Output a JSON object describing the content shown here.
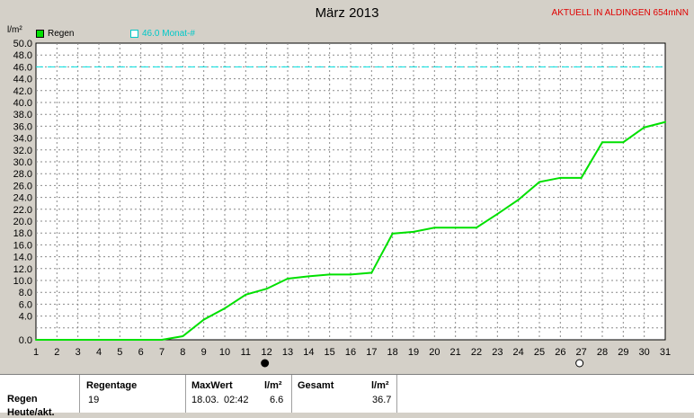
{
  "chart_data": {
    "type": "line",
    "title": "März 2013",
    "ylabel": "l/m²",
    "ylim": [
      0,
      50
    ],
    "yticks": [
      "0.0",
      "4.0",
      "6.0",
      "8.0",
      "10.0",
      "12.0",
      "14.0",
      "16.0",
      "18.0",
      "20.0",
      "22.0",
      "24.0",
      "26.0",
      "28.0",
      "30.0",
      "32.0",
      "34.0",
      "36.0",
      "38.0",
      "40.0",
      "42.0",
      "44.0",
      "46.0",
      "48.0",
      "50.0"
    ],
    "ytick_values": [
      0,
      4,
      6,
      8,
      10,
      12,
      14,
      16,
      18,
      20,
      22,
      24,
      26,
      28,
      30,
      32,
      34,
      36,
      38,
      40,
      42,
      44,
      46,
      48,
      50
    ],
    "x": [
      1,
      2,
      3,
      4,
      5,
      6,
      7,
      8,
      9,
      10,
      11,
      12,
      13,
      14,
      15,
      16,
      17,
      18,
      19,
      20,
      21,
      22,
      23,
      24,
      25,
      26,
      27,
      28,
      29,
      30,
      31
    ],
    "xlim": [
      1,
      31
    ],
    "grid": true,
    "series": [
      {
        "name": "Regen",
        "color": "#00e000",
        "x": [
          1,
          2,
          3,
          4,
          5,
          6,
          7,
          8,
          9,
          10,
          11,
          12,
          13,
          14,
          15,
          16,
          17,
          18,
          19,
          20,
          21,
          22,
          23,
          24,
          25,
          26,
          27,
          28,
          29,
          30,
          31
        ],
        "values": [
          0,
          0,
          0,
          0,
          0,
          0,
          0,
          0.6,
          3.4,
          5.3,
          7.6,
          8.6,
          10.3,
          10.7,
          11.0,
          11.0,
          11.3,
          17.9,
          18.2,
          18.9,
          18.9,
          18.9,
          21.2,
          23.6,
          26.6,
          27.3,
          27.3,
          33.3,
          33.3,
          35.8,
          36.7
        ]
      }
    ],
    "reference_line": {
      "label": "46.0 Monat-#",
      "value": 46.0,
      "color": "#00e0e0"
    },
    "moon_phases": [
      {
        "x": 12,
        "phase": "full"
      },
      {
        "x": 27,
        "phase": "new"
      }
    ]
  },
  "header": {
    "station": "AKTUELL IN ALDINGEN 654mNN"
  },
  "summary": {
    "row_label": "Regen",
    "next_row_label": "Heute/akt.",
    "regentage_label": "Regentage",
    "regentage_value": "19",
    "maxwert_label": "MaxWert",
    "maxwert_unit": "l/m²",
    "maxwert_date": "18.03.",
    "maxwert_time": "02:42",
    "maxwert_value": "6.6",
    "gesamt_label": "Gesamt",
    "gesamt_unit": "l/m²",
    "gesamt_value": "36.7"
  }
}
